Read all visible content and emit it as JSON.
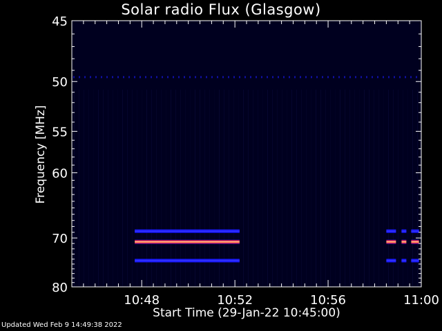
{
  "chart_data": {
    "type": "heatmap",
    "title": "Solar radio Flux (Glasgow)",
    "xlabel": "Start Time (29-Jan-22 10:45:00)",
    "ylabel": "Frequency [MHz]",
    "x_range_minutes": [
      0,
      15
    ],
    "x_ticks": [
      {
        "minute": 3,
        "label": "10:48"
      },
      {
        "minute": 7,
        "label": "10:52"
      },
      {
        "minute": 11,
        "label": "10:56"
      },
      {
        "minute": 15,
        "label": "11:00"
      }
    ],
    "y_range_mhz": [
      45,
      80
    ],
    "y_scale": "reciprocal",
    "y_ticks": [
      45,
      50,
      55,
      60,
      70,
      80
    ],
    "y_tick_labels": [
      "45",
      "50",
      "55",
      "60",
      "70",
      "80"
    ],
    "colormap": "dark blue to red",
    "emission_bands": [
      {
        "freq_mhz": 68.8,
        "t_start": 2.7,
        "t_end": 7.2,
        "intensity": "blue"
      },
      {
        "freq_mhz": 70.7,
        "t_start": 2.7,
        "t_end": 7.2,
        "intensity": "red"
      },
      {
        "freq_mhz": 74.3,
        "t_start": 2.7,
        "t_end": 7.2,
        "intensity": "blue"
      },
      {
        "freq_mhz": 68.8,
        "t_start": 13.5,
        "t_end": 14.9,
        "intensity": "blue"
      },
      {
        "freq_mhz": 70.7,
        "t_start": 13.5,
        "t_end": 14.9,
        "intensity": "red"
      },
      {
        "freq_mhz": 74.3,
        "t_start": 13.5,
        "t_end": 14.9,
        "intensity": "blue"
      }
    ],
    "interference_line_mhz": 49.6
  },
  "footer": "Updated Wed Feb  9 14:49:38 2022"
}
